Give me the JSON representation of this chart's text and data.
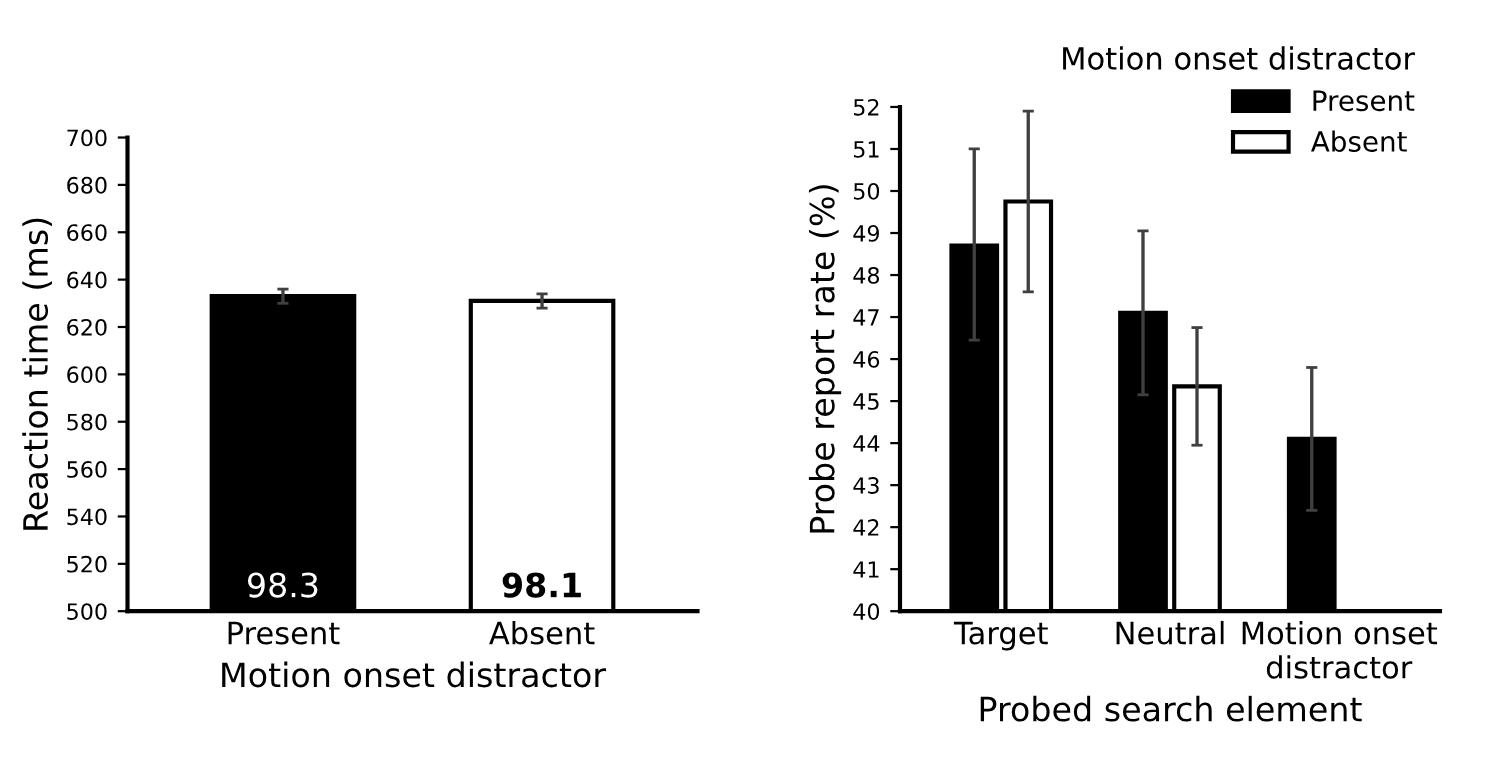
{
  "chart_data": [
    {
      "type": "bar",
      "xlabel": "Motion onset distractor",
      "ylabel": "Reaction time (ms)",
      "categories": [
        "Present",
        "Absent"
      ],
      "values": [
        633,
        631
      ],
      "colors": [
        "#000000",
        "#ffffff"
      ],
      "errors": [
        3,
        3
      ],
      "annotations": [
        "98.3",
        "98.1"
      ],
      "ylim": [
        500,
        700
      ],
      "yticks": [
        500,
        520,
        540,
        560,
        580,
        600,
        620,
        640,
        660,
        680,
        700
      ],
      "grid": false
    },
    {
      "type": "bar",
      "xlabel": "Probed search element",
      "ylabel": "Probe report rate (%)",
      "legend_title": "Motion onset distractor",
      "legend": "top right",
      "grid": false,
      "categories": [
        "Target",
        "Neutral",
        "Motion onset\ndistractor"
      ],
      "ylim": [
        40,
        52
      ],
      "yticks": [
        40,
        41,
        42,
        43,
        44,
        45,
        46,
        47,
        48,
        49,
        50,
        51,
        52
      ],
      "series": [
        {
          "name": "Present",
          "color": "#000000",
          "values": [
            48.7,
            47.1,
            44.1
          ],
          "errors": [
            [
              46.45,
              51.0
            ],
            [
              45.15,
              49.05
            ],
            [
              42.4,
              45.8
            ]
          ]
        },
        {
          "name": "Absent",
          "color": "#ffffff",
          "values": [
            49.75,
            45.35,
            null
          ],
          "errors": [
            [
              47.6,
              51.9
            ],
            [
              43.95,
              46.75
            ],
            null
          ]
        }
      ]
    }
  ]
}
